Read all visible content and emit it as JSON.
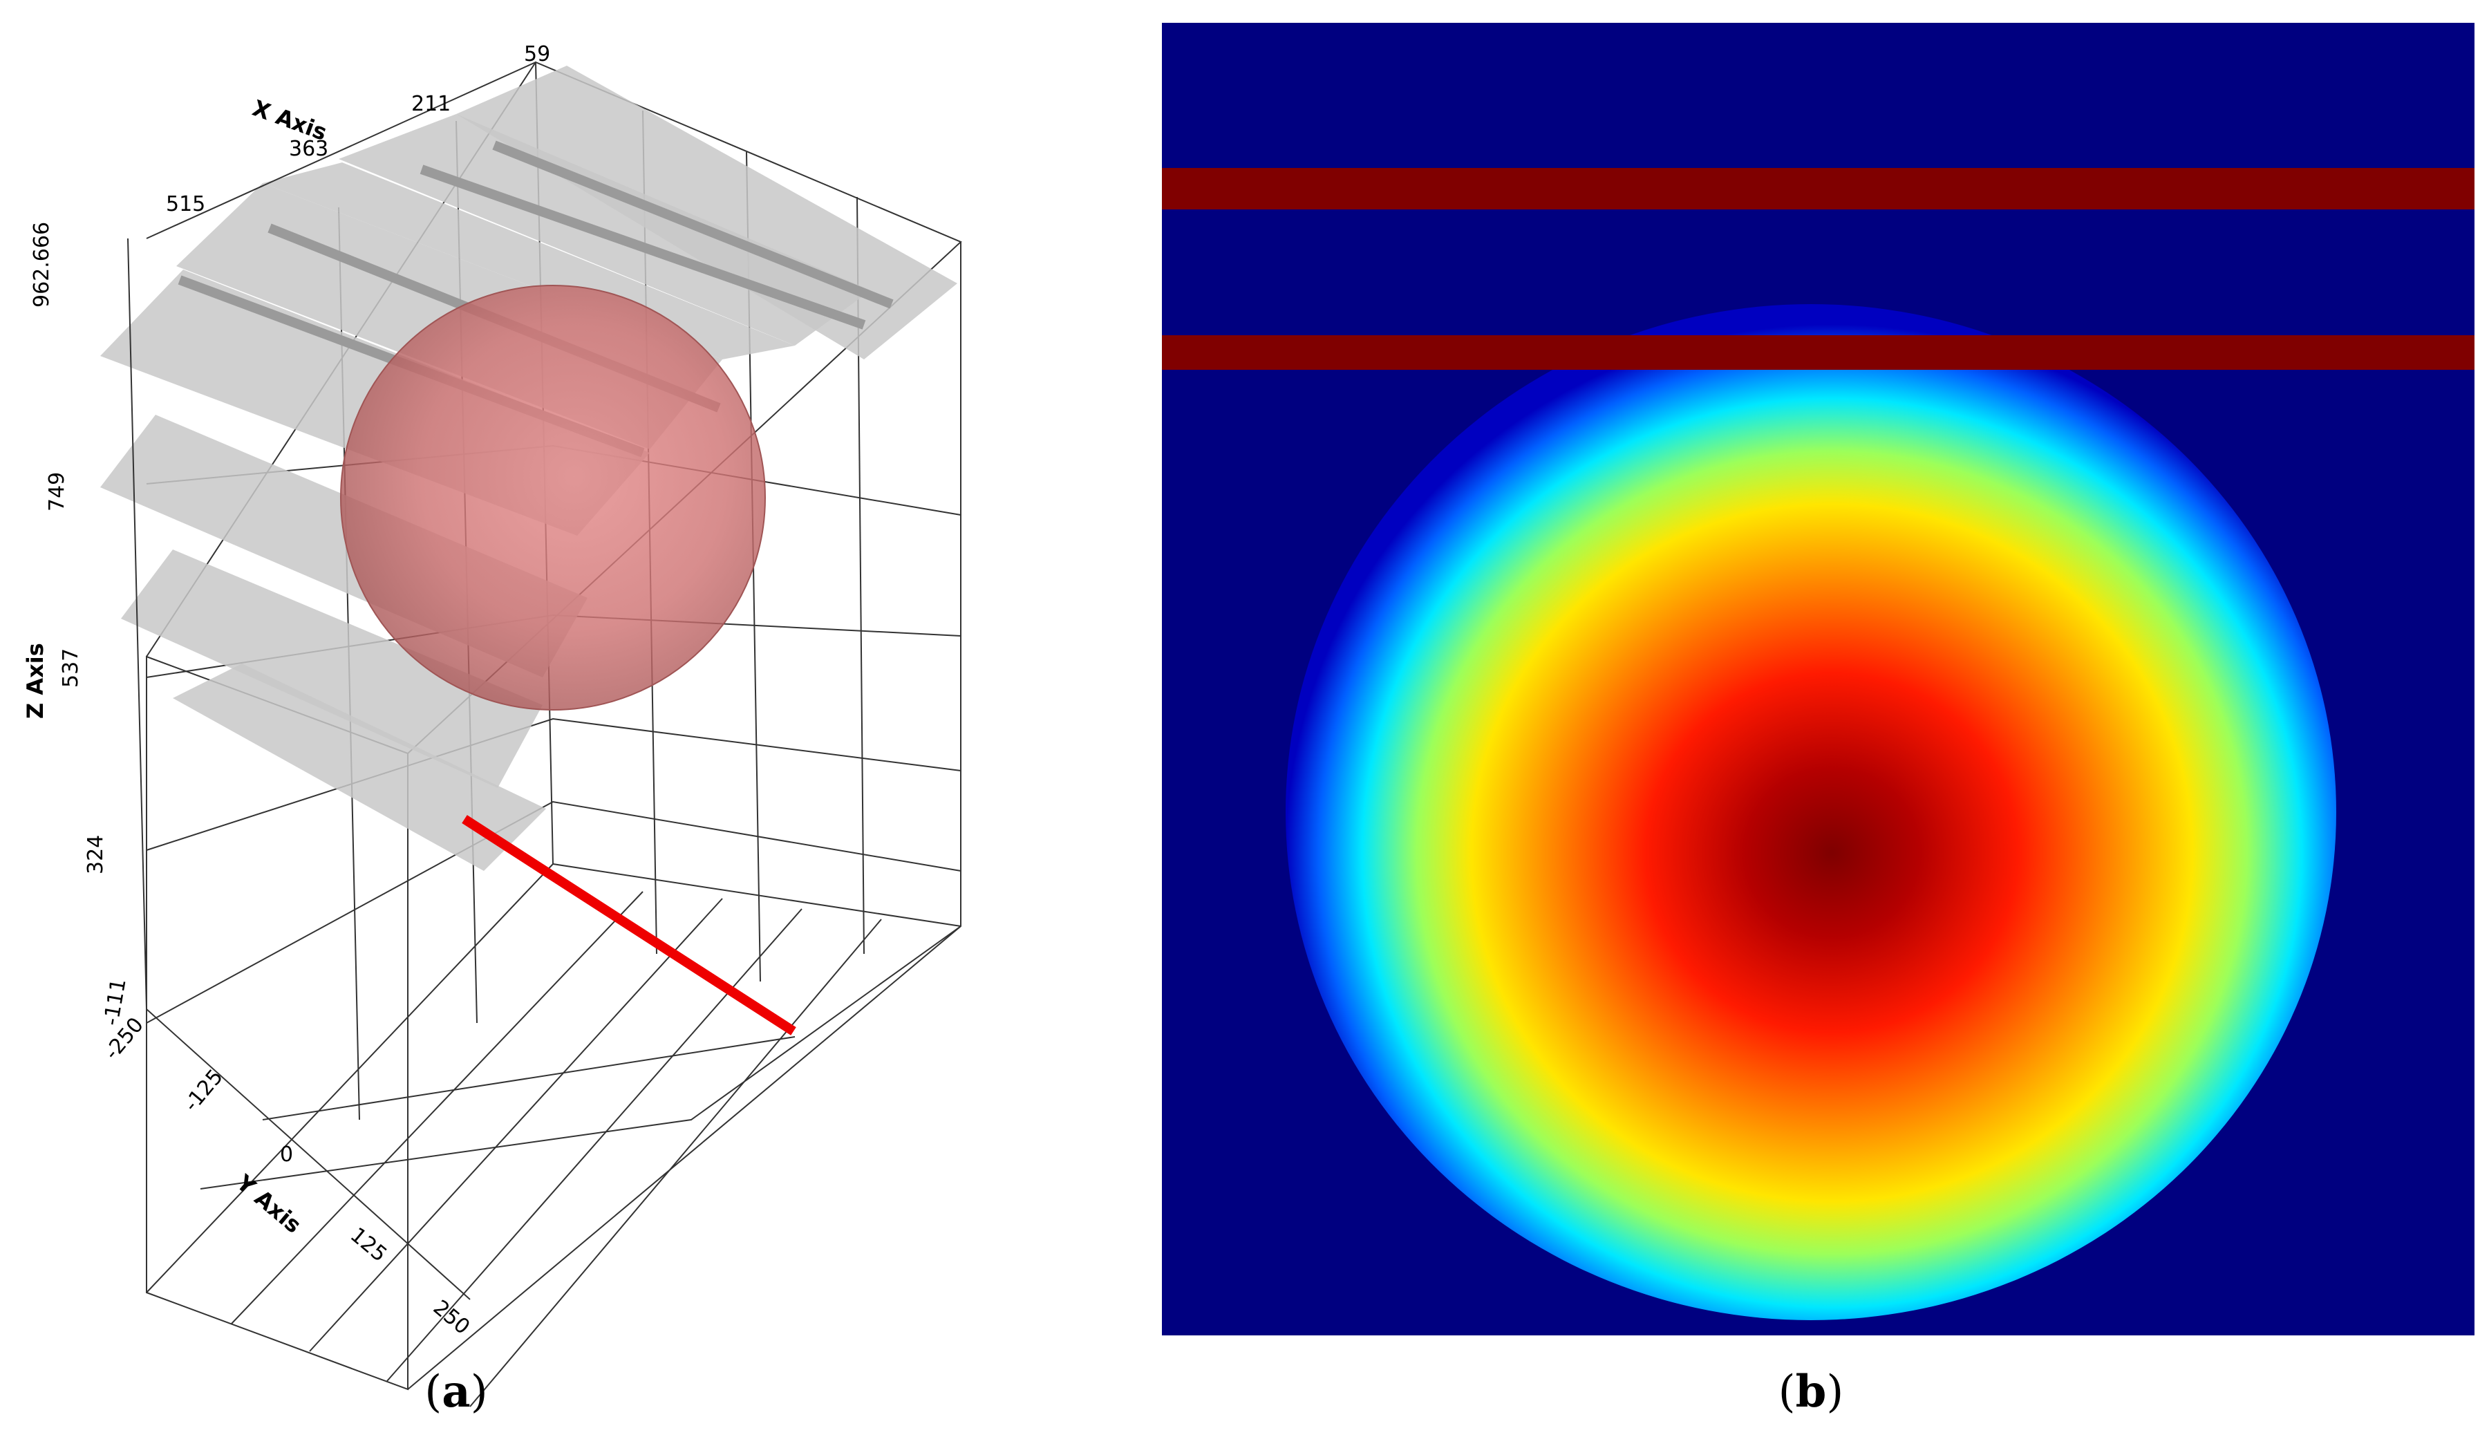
{
  "panel_a": {
    "caption_letter": "a",
    "x_axis": {
      "title": "X Axis",
      "ticks": [
        "515",
        "363",
        "211",
        "59"
      ]
    },
    "z_axis": {
      "title": "Z Axis",
      "ticks": [
        "962.666",
        "749",
        "537",
        "324"
      ]
    },
    "y_axis": {
      "title": "Y Axis",
      "ticks": [
        "-250",
        "-125",
        "0",
        "125",
        "250"
      ],
      "corner_label": "-111"
    },
    "sphere_color": "#c96a6a",
    "plate_color": "#c8c8c8",
    "wire_color": "#ee0000"
  },
  "panel_b": {
    "caption_letter": "b",
    "background_color": "#000080",
    "band_color": "#800000",
    "colormap": "jet"
  }
}
